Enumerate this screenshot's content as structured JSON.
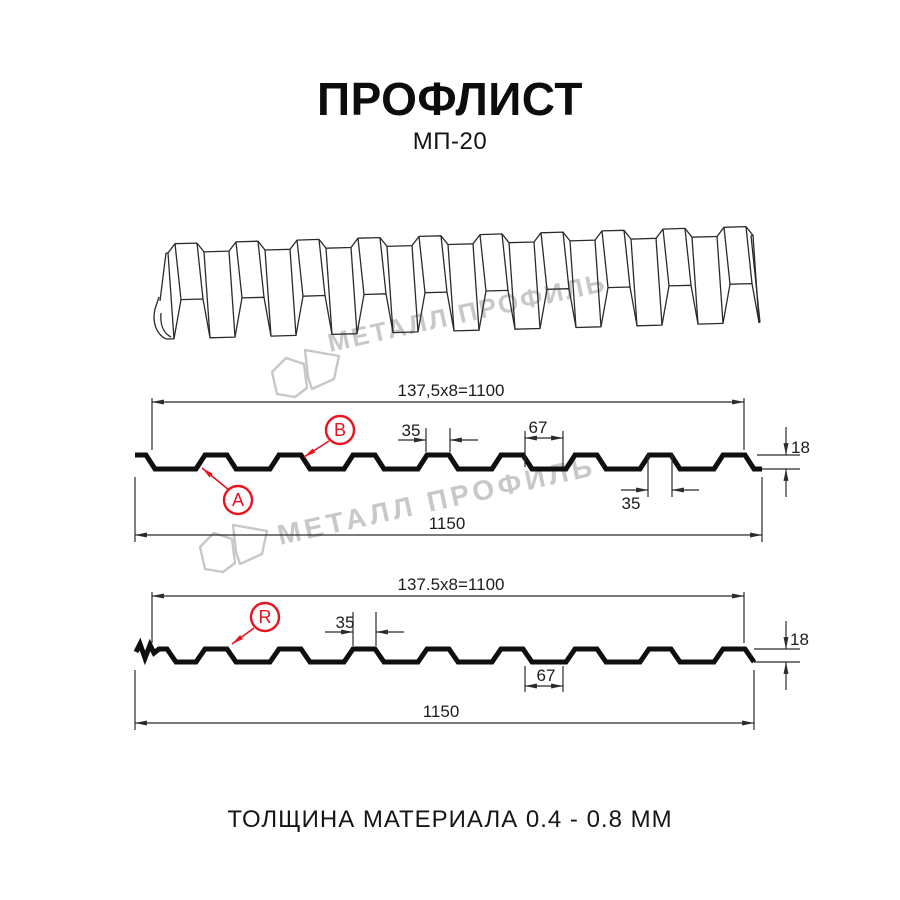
{
  "header": {
    "title": "ПРОФЛИСТ",
    "subtitle": "МП-20"
  },
  "watermark": {
    "brand_text": "МЕТАЛЛ ПРОФИЛЬ",
    "logo": "metal-profil-logo"
  },
  "colors": {
    "annotation_red": "#e8141e",
    "drawing_line": "#2b2b2b",
    "profile_line": "#0f0f0f",
    "watermark_gray": "#c8c8c8"
  },
  "profile_top": {
    "dim_pitch": "137,5x8=1100",
    "dim_crest_top": "35",
    "dim_valley": "67",
    "dim_height": "18",
    "dim_crest_base": "35",
    "dim_overall": "1150",
    "marker_a": "A",
    "marker_b": "B"
  },
  "profile_bottom": {
    "dim_pitch": "137.5x8=1100",
    "dim_crest_top": "35",
    "dim_valley": "67",
    "dim_height": "18",
    "dim_overall": "1150",
    "marker_r": "R"
  },
  "footer": {
    "thickness_note": "ТОЛЩИНА МАТЕРИАЛА 0.4 - 0.8 ММ"
  }
}
